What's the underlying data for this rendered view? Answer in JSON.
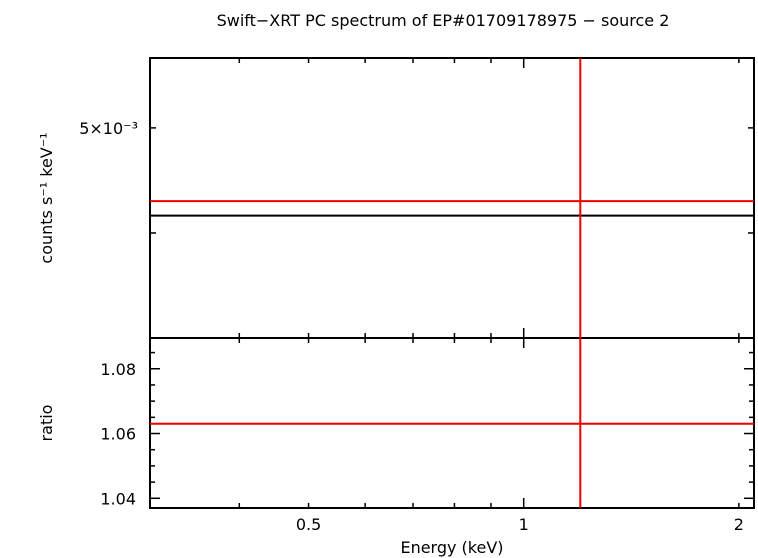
{
  "chart_data": {
    "type": "line",
    "title": "Swift−XRT PC spectrum of EP#01709178975 − source 2",
    "xlabel": "Energy (keV)",
    "xscale": "log",
    "xlim": [
      0.3,
      2.1
    ],
    "xticks": [
      {
        "value": 0.5,
        "label": "0.5"
      },
      {
        "value": 1,
        "label": "1"
      },
      {
        "value": 2,
        "label": "2"
      }
    ],
    "panels": [
      {
        "name": "spectrum",
        "ylabel": "counts s⁻¹ keV⁻¹",
        "yscale": "log",
        "ylim": [
          0.0032,
          0.0058
        ],
        "yticks": [
          {
            "value": 0.005,
            "label": "5×10⁻³"
          }
        ],
        "series": [
          {
            "name": "data",
            "color": "#000000",
            "y": 0.00415
          },
          {
            "name": "model",
            "color": "#ee0000",
            "y": 0.00428
          }
        ],
        "vline": {
          "x": 1.2,
          "color": "#ee0000"
        }
      },
      {
        "name": "ratio",
        "ylabel": "ratio",
        "yscale": "linear",
        "ylim": [
          1.037,
          1.0895
        ],
        "yticks": [
          {
            "value": 1.04,
            "label": "1.04"
          },
          {
            "value": 1.06,
            "label": "1.06"
          },
          {
            "value": 1.08,
            "label": "1.08"
          }
        ],
        "series": [
          {
            "name": "ratio",
            "color": "#ee0000",
            "y": 1.063
          }
        ],
        "vline": {
          "x": 1.2,
          "color": "#ee0000"
        }
      }
    ]
  }
}
